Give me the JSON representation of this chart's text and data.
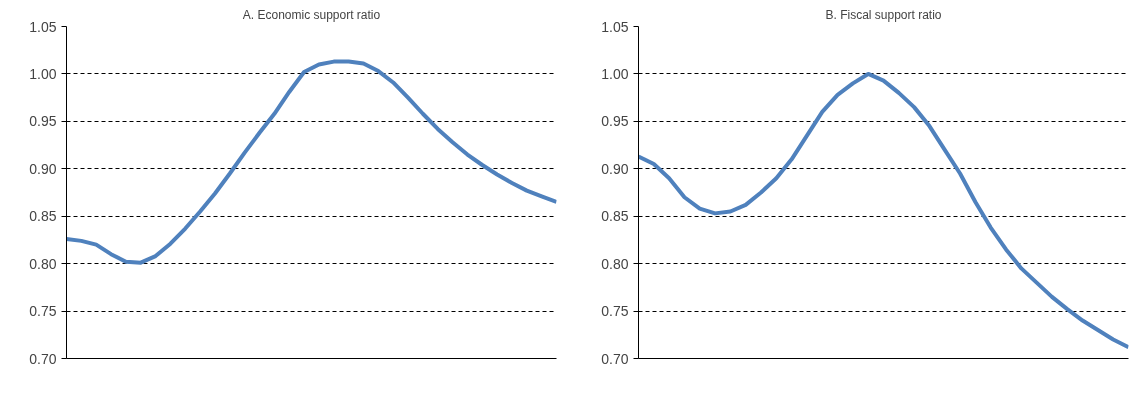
{
  "chart_data": [
    {
      "type": "line",
      "title": "A. Economic support ratio",
      "categories": [
        null,
        null,
        null,
        null,
        null,
        null,
        null,
        null,
        null,
        null,
        null,
        null,
        null,
        null,
        null,
        null,
        null,
        null,
        null,
        null,
        null,
        null,
        null,
        null,
        null,
        null,
        null,
        null,
        null,
        null,
        null,
        null,
        null,
        null
      ],
      "series": [
        {
          "color": "#4f81bd",
          "values": [
            0.826,
            0.824,
            0.82,
            0.81,
            0.802,
            0.801,
            0.808,
            0.821,
            0.837,
            0.855,
            0.874,
            0.895,
            0.917,
            0.938,
            0.958,
            0.981,
            1.002,
            1.01,
            1.013,
            1.013,
            1.011,
            1.003,
            0.991,
            0.975,
            0.958,
            0.942,
            0.928,
            0.915,
            0.904,
            0.894,
            0.885,
            0.877,
            0.871,
            0.865
          ]
        }
      ],
      "ylim": [
        0.7,
        1.05
      ],
      "yticks": [
        {
          "value": 0.7,
          "label": "0.70"
        },
        {
          "value": 0.75,
          "label": "0.75"
        },
        {
          "value": 0.8,
          "label": "0.80"
        },
        {
          "value": 0.85,
          "label": "0.85"
        },
        {
          "value": 0.9,
          "label": "0.90"
        },
        {
          "value": 0.95,
          "label": "0.95"
        },
        {
          "value": 1.0,
          "label": "1.00"
        },
        {
          "value": 1.05,
          "label": "1.05"
        }
      ],
      "grid": "y",
      "line_style": "solid",
      "marker": "none",
      "tick_labels": "y"
    },
    {
      "type": "line",
      "title": "B. Fiscal support ratio",
      "categories": [
        null,
        null,
        null,
        null,
        null,
        null,
        null,
        null,
        null,
        null,
        null,
        null,
        null,
        null,
        null,
        null,
        null,
        null,
        null,
        null,
        null,
        null,
        null,
        null,
        null,
        null,
        null,
        null,
        null,
        null,
        null,
        null,
        null
      ],
      "series": [
        {
          "color": "#4f81bd",
          "values": [
            0.913,
            0.905,
            0.89,
            0.87,
            0.858,
            0.853,
            0.855,
            0.862,
            0.875,
            0.89,
            0.91,
            0.935,
            0.96,
            0.978,
            0.99,
            1.0,
            0.993,
            0.98,
            0.965,
            0.945,
            0.92,
            0.895,
            0.865,
            0.838,
            0.815,
            0.795,
            0.78,
            0.765,
            0.752,
            0.74,
            0.73,
            0.72,
            0.712
          ]
        }
      ],
      "ylim": [
        0.7,
        1.05
      ],
      "yticks": [
        {
          "value": 0.7,
          "label": "0.70"
        },
        {
          "value": 0.75,
          "label": "0.75"
        },
        {
          "value": 0.8,
          "label": "0.80"
        },
        {
          "value": 0.85,
          "label": "0.85"
        },
        {
          "value": 0.9,
          "label": "0.90"
        },
        {
          "value": 0.95,
          "label": "0.95"
        },
        {
          "value": 1.0,
          "label": "1.00"
        },
        {
          "value": 1.05,
          "label": "1.05"
        }
      ],
      "grid": "y",
      "line_style": "solid",
      "marker": "none",
      "tick_labels": "y"
    }
  ]
}
